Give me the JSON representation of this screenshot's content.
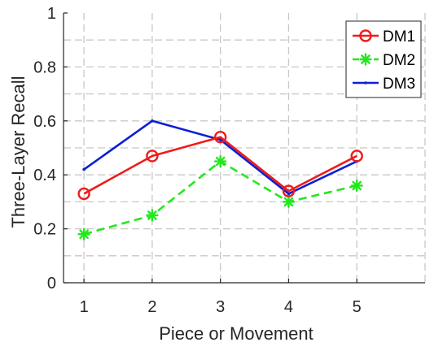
{
  "chart_data": {
    "type": "line",
    "xlabel": "Piece or Movement",
    "ylabel": "Three-Layer Recall",
    "xlim": [
      0.7,
      6
    ],
    "ylim": [
      0,
      1
    ],
    "x_ticks": [
      1,
      2,
      3,
      4,
      5
    ],
    "y_ticks": [
      0,
      0.2,
      0.4,
      0.6,
      0.8,
      1
    ],
    "y_tick_labels": [
      "0",
      "0.2",
      "0.4",
      "0.6",
      "0.8",
      "1"
    ],
    "grid": true,
    "legend_position": "top-right",
    "x": [
      1,
      2,
      3,
      4,
      5
    ],
    "series": [
      {
        "name": "DM1",
        "values": [
          0.33,
          0.47,
          0.54,
          0.34,
          0.47
        ],
        "color": "#ee1b1b",
        "line_style": "solid",
        "marker": "circle"
      },
      {
        "name": "DM2",
        "values": [
          0.18,
          0.25,
          0.45,
          0.3,
          0.36
        ],
        "color": "#22e81e",
        "line_style": "dashed",
        "marker": "asterisk"
      },
      {
        "name": "DM3",
        "values": [
          0.42,
          0.6,
          0.53,
          0.33,
          0.45
        ],
        "color": "#0d1fd6",
        "line_style": "solid",
        "marker": "point"
      }
    ]
  }
}
